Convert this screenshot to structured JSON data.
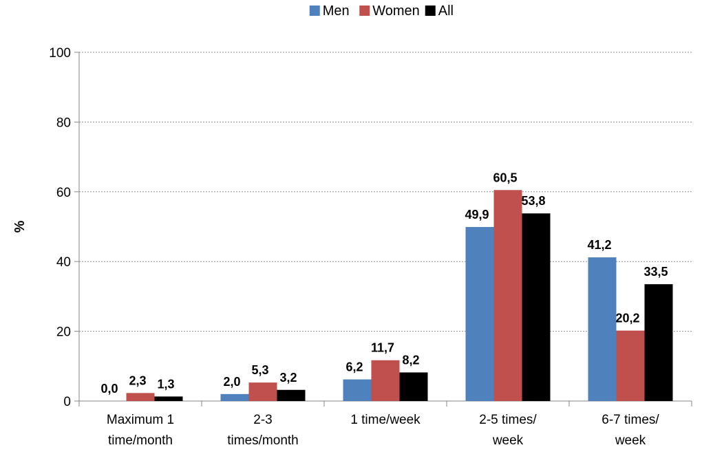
{
  "chart_data": {
    "type": "bar",
    "title": "",
    "xlabel": "",
    "ylabel": "%",
    "ylim": [
      0,
      100
    ],
    "yticks": [
      "0",
      "20",
      "40",
      "60",
      "80",
      "100"
    ],
    "grid": true,
    "legend_position": "top",
    "categories": [
      [
        "Maximum 1",
        "time/month"
      ],
      [
        "2-3",
        "times/month"
      ],
      [
        "1 time/week"
      ],
      [
        "2-5 times/",
        "week"
      ],
      [
        "6-7 times/",
        "week"
      ]
    ],
    "series": [
      {
        "name": "Men",
        "color": "#4F81BD",
        "values": [
          0.0,
          2.0,
          6.2,
          49.9,
          41.2
        ],
        "labels": [
          "0,0",
          "2,0",
          "6,2",
          "49,9",
          "41,2"
        ]
      },
      {
        "name": "Women",
        "color": "#C0504D",
        "values": [
          2.3,
          5.3,
          11.7,
          60.5,
          20.2
        ],
        "labels": [
          "2,3",
          "5,3",
          "11,7",
          "60,5",
          "20,2"
        ]
      },
      {
        "name": "All",
        "color": "#000000",
        "values": [
          1.3,
          3.2,
          8.2,
          53.8,
          33.5
        ],
        "labels": [
          "1,3",
          "3,2",
          "8,2",
          "53,8",
          "33,5"
        ]
      }
    ]
  }
}
